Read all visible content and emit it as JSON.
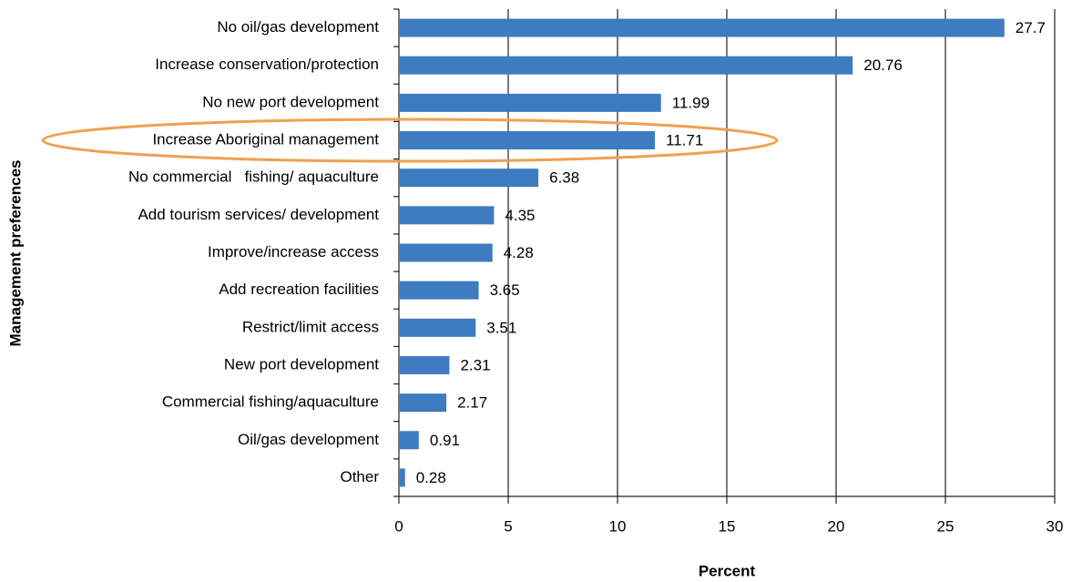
{
  "chart_data": {
    "type": "bar",
    "orientation": "horizontal",
    "categories": [
      "No oil/gas development",
      "Increase conservation/protection",
      "No new port development",
      "Increase Aboriginal management",
      "No commercial   fishing/ aquaculture",
      "Add tourism services/ development",
      "Improve/increase access",
      "Add recreation facilities",
      "Restrict/limit access",
      "New port development",
      "Commercial fishing/aquaculture",
      "Oil/gas development",
      "Other"
    ],
    "values": [
      27.7,
      20.76,
      11.99,
      11.71,
      6.38,
      4.35,
      4.28,
      3.65,
      3.51,
      2.31,
      2.17,
      0.91,
      0.28
    ],
    "color": "#3d7cc0",
    "xlabel": "Percent",
    "ylabel": "Management preferences",
    "xlim": [
      0,
      30
    ],
    "xticks": [
      0,
      5,
      10,
      15,
      20,
      25,
      30
    ],
    "grid": true,
    "highlight_color": "#f0a050"
  }
}
